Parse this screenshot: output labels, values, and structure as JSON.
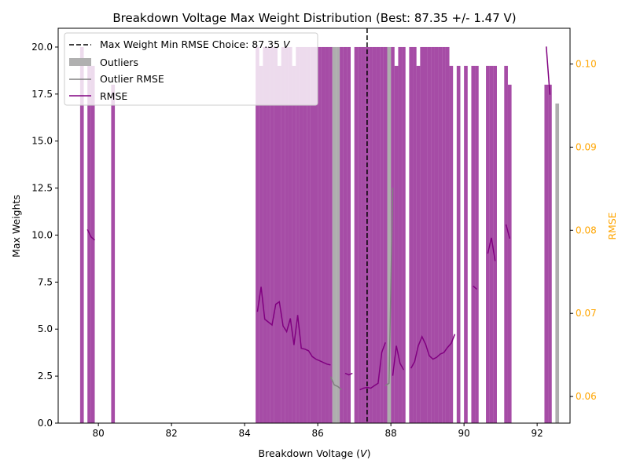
{
  "chart_data": {
    "type": "bar",
    "title": "Breakdown Voltage Max Weight Distribution (Best: 87.35 +/- 1.47 V)",
    "xlabel": "Breakdown Voltage (V)",
    "xlabel_parts": {
      "pre": "Breakdown Voltage (",
      "var": "V",
      "post": ")"
    },
    "ylabel": "Max Weights",
    "y2label": "RMSE",
    "xlim": [
      78.9,
      92.9
    ],
    "ylim": [
      0,
      21
    ],
    "y2lim": [
      0.0568,
      0.1043
    ],
    "xticks": [
      80,
      82,
      84,
      86,
      88,
      90,
      92
    ],
    "xtick_labels": [
      "80",
      "82",
      "84",
      "86",
      "88",
      "90",
      "92"
    ],
    "yticks": [
      0,
      2.5,
      5,
      7.5,
      10,
      12.5,
      15,
      17.5,
      20
    ],
    "ytick_labels": [
      "0.0",
      "2.5",
      "5.0",
      "7.5",
      "10.0",
      "12.5",
      "15.0",
      "17.5",
      "20.0"
    ],
    "y2ticks": [
      0.06,
      0.07,
      0.08,
      0.09,
      0.1
    ],
    "y2tick_labels": [
      "0.06",
      "0.07",
      "0.08",
      "0.09",
      "0.10"
    ],
    "grid": false,
    "legend_position": "top-left",
    "best_voltage": 87.35,
    "colors": {
      "bars": "#800080",
      "bars_opacity": 0.7,
      "outliers": "#a0a0a0",
      "rmse": "#800080",
      "outlier_rmse": "#808080",
      "vline": "#000000",
      "right_axis": "#ffa500"
    },
    "legend": [
      {
        "label_pre": "Max Weight Min RMSE Choice: 87.35 ",
        "label_var": "V",
        "kind": "dashed-line"
      },
      {
        "label_pre": "Outliers",
        "kind": "patch"
      },
      {
        "label_pre": "Outlier RMSE",
        "kind": "gray-line"
      },
      {
        "label_pre": "RMSE",
        "kind": "purple-line"
      }
    ],
    "bar_width": 0.1,
    "series": [
      {
        "name": "Max Weights",
        "x": [
          79.55,
          79.75,
          79.85,
          80.4,
          84.35,
          84.45,
          84.55,
          84.65,
          84.75,
          84.85,
          84.95,
          85.05,
          85.15,
          85.25,
          85.35,
          85.45,
          85.55,
          85.65,
          85.75,
          85.85,
          85.95,
          86.05,
          86.15,
          86.25,
          86.35,
          86.65,
          86.75,
          86.85,
          87.05,
          87.15,
          87.25,
          87.35,
          87.45,
          87.55,
          87.65,
          87.75,
          87.85,
          88.05,
          88.15,
          88.25,
          88.35,
          88.55,
          88.65,
          88.75,
          88.85,
          88.95,
          89.05,
          89.15,
          89.25,
          89.35,
          89.45,
          89.55,
          89.65,
          89.85,
          90.05,
          90.25,
          90.35,
          90.65,
          90.75,
          90.85,
          91.15,
          91.25,
          92.25,
          92.35
        ],
        "values": [
          20,
          19,
          19,
          18,
          20,
          19,
          20,
          20,
          20,
          20,
          19,
          20,
          20,
          20,
          19,
          20,
          20,
          20,
          20,
          20,
          20,
          20,
          20,
          20,
          20,
          20,
          20,
          20,
          20,
          20,
          20,
          20,
          20,
          20,
          20,
          20,
          20,
          20,
          19,
          20,
          20,
          20,
          20,
          19,
          20,
          20,
          20,
          20,
          20,
          20,
          20,
          20,
          19,
          19,
          19,
          19,
          19,
          19,
          19,
          19,
          19,
          18,
          18,
          18
        ]
      },
      {
        "name": "Outliers",
        "x": [
          86.45,
          86.55,
          87.95,
          92.55
        ],
        "values": [
          20,
          20,
          20,
          17
        ]
      },
      {
        "name": "RMSE",
        "segments": [
          [
            [
              79.7,
              0.0801
            ],
            [
              79.8,
              0.0792
            ],
            [
              79.9,
              0.0788
            ]
          ],
          [
            [
              84.35,
              0.0702
            ],
            [
              84.45,
              0.0732
            ],
            [
              84.55,
              0.0693
            ],
            [
              84.75,
              0.0686
            ],
            [
              84.85,
              0.0711
            ],
            [
              84.95,
              0.0714
            ],
            [
              85.05,
              0.0685
            ],
            [
              85.15,
              0.0678
            ],
            [
              85.25,
              0.0694
            ],
            [
              85.35,
              0.0662
            ],
            [
              85.45,
              0.0698
            ],
            [
              85.55,
              0.0658
            ],
            [
              85.65,
              0.0657
            ],
            [
              85.75,
              0.0655
            ],
            [
              85.85,
              0.0648
            ],
            [
              85.95,
              0.0645
            ],
            [
              86.05,
              0.0643
            ],
            [
              86.15,
              0.0641
            ],
            [
              86.25,
              0.0639
            ],
            [
              86.35,
              0.0638
            ]
          ],
          [
            [
              86.75,
              0.0628
            ],
            [
              86.85,
              0.0626
            ],
            [
              86.95,
              0.0628
            ]
          ],
          [
            [
              87.15,
              0.0608
            ],
            [
              87.25,
              0.061
            ],
            [
              87.35,
              0.0611
            ],
            [
              87.45,
              0.061
            ],
            [
              87.55,
              0.0613
            ],
            [
              87.65,
              0.0616
            ],
            [
              87.75,
              0.0653
            ],
            [
              87.85,
              0.0665
            ]
          ],
          [
            [
              88.05,
              0.0625
            ],
            [
              88.15,
              0.0661
            ],
            [
              88.25,
              0.064
            ],
            [
              88.35,
              0.0632
            ]
          ],
          [
            [
              88.55,
              0.0634
            ],
            [
              88.65,
              0.0642
            ],
            [
              88.75,
              0.0661
            ],
            [
              88.85,
              0.0672
            ],
            [
              88.95,
              0.0663
            ],
            [
              89.05,
              0.0649
            ],
            [
              89.15,
              0.0645
            ],
            [
              89.25,
              0.0647
            ],
            [
              89.35,
              0.0651
            ],
            [
              89.45,
              0.0653
            ],
            [
              89.55,
              0.0659
            ],
            [
              89.65,
              0.0664
            ],
            [
              89.75,
              0.0675
            ]
          ],
          [
            [
              90.25,
              0.0733
            ],
            [
              90.35,
              0.0729
            ]
          ],
          [
            [
              90.65,
              0.0772
            ],
            [
              90.75,
              0.0791
            ],
            [
              90.85,
              0.0763
            ]
          ],
          [
            [
              91.15,
              0.0807
            ],
            [
              91.25,
              0.079
            ]
          ],
          [
            [
              92.25,
              0.1021
            ],
            [
              92.35,
              0.0963
            ]
          ]
        ]
      },
      {
        "name": "Outlier RMSE",
        "segments": [
          [
            [
              86.35,
              0.0624
            ],
            [
              86.45,
              0.0614
            ],
            [
              86.55,
              0.0612
            ],
            [
              86.65,
              0.0608
            ]
          ],
          [
            [
              87.85,
              0.0613
            ],
            [
              87.95,
              0.0616
            ],
            [
              88.05,
              0.0851
            ]
          ]
        ]
      }
    ]
  }
}
